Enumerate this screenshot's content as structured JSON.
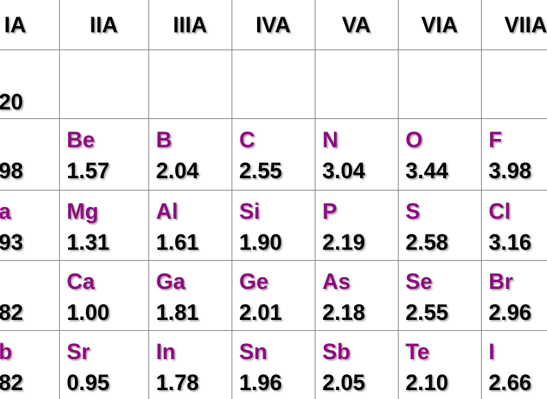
{
  "header": {
    "columns": [
      "IA",
      "IIA",
      "IIIA",
      "IVA",
      "VA",
      "VIA",
      "VIIA"
    ]
  },
  "table": {
    "rows": [
      [
        {
          "value": "20"
        },
        {},
        {},
        {},
        {},
        {},
        {}
      ],
      [
        {
          "value": "98"
        },
        {
          "symbol": "Be",
          "value": "1.57"
        },
        {
          "symbol": "B",
          "value": "2.04"
        },
        {
          "symbol": "C",
          "value": "2.55"
        },
        {
          "symbol": "N",
          "value": "3.04"
        },
        {
          "symbol": "O",
          "value": "3.44"
        },
        {
          "symbol": "F",
          "value": "3.98"
        }
      ],
      [
        {
          "symbol": "a",
          "value": "93"
        },
        {
          "symbol": "Mg",
          "value": "1.31"
        },
        {
          "symbol": "Al",
          "value": "1.61"
        },
        {
          "symbol": "Si",
          "value": "1.90"
        },
        {
          "symbol": "P",
          "value": "2.19"
        },
        {
          "symbol": "S",
          "value": "2.58"
        },
        {
          "symbol": "Cl",
          "value": "3.16"
        }
      ],
      [
        {
          "value": "82"
        },
        {
          "symbol": "Ca",
          "value": "1.00"
        },
        {
          "symbol": "Ga",
          "value": "1.81"
        },
        {
          "symbol": "Ge",
          "value": "2.01"
        },
        {
          "symbol": "As",
          "value": "2.18"
        },
        {
          "symbol": "Se",
          "value": "2.55"
        },
        {
          "symbol": "Br",
          "value": "2.96"
        }
      ],
      [
        {
          "symbol": "b",
          "value": "82"
        },
        {
          "symbol": "Sr",
          "value": "0.95"
        },
        {
          "symbol": "In",
          "value": "1.78"
        },
        {
          "symbol": "Sn",
          "value": "1.96"
        },
        {
          "symbol": "Sb",
          "value": "2.05"
        },
        {
          "symbol": "Te",
          "value": "2.10"
        },
        {
          "symbol": "I",
          "value": "2.66"
        }
      ]
    ]
  }
}
